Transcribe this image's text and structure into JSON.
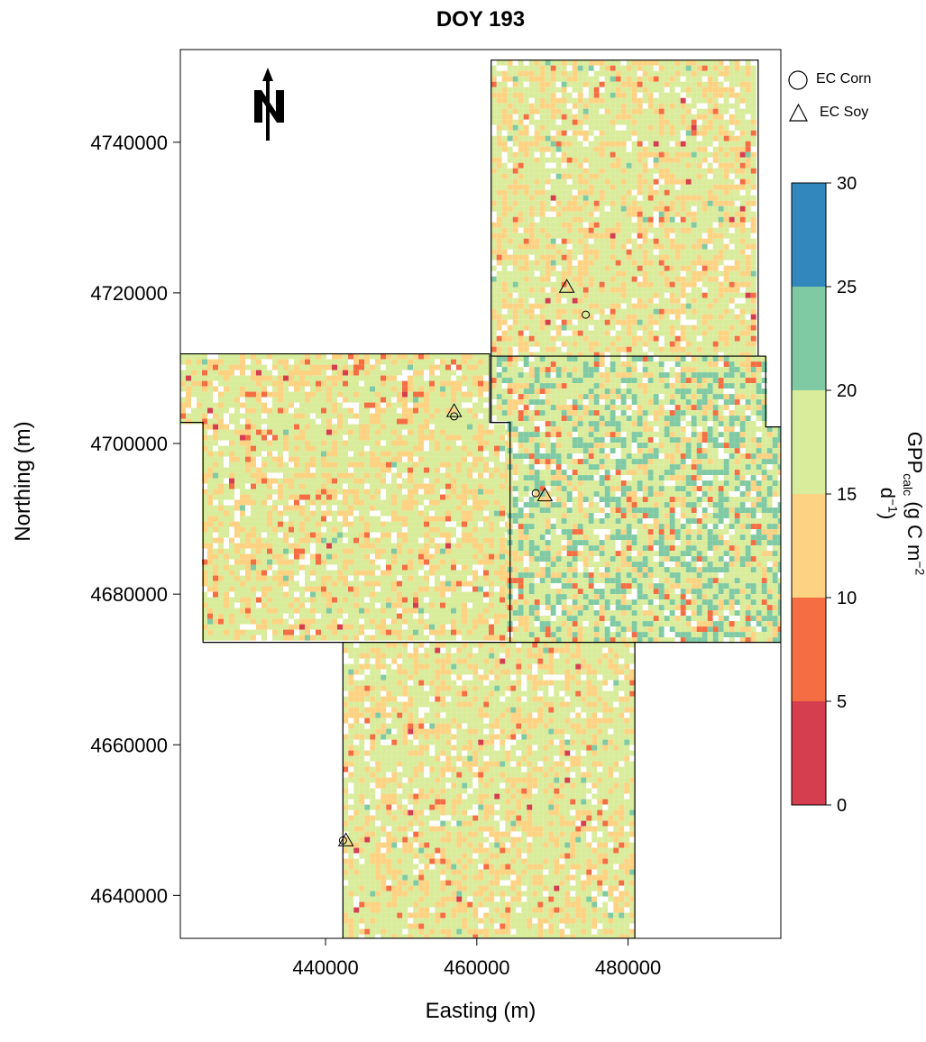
{
  "title": "DOY 193",
  "axes": {
    "xlabel": "Easting (m)",
    "ylabel": "Northing (m)",
    "xticks": [
      "440000",
      "460000",
      "480000"
    ],
    "xtick_values": [
      440000,
      460000,
      480000
    ],
    "yticks": [
      "4640000",
      "4660000",
      "4680000",
      "4700000",
      "4720000",
      "4740000"
    ],
    "ytick_values": [
      4640000,
      4660000,
      4680000,
      4700000,
      4720000,
      4740000
    ],
    "xlim": [
      420800,
      500200
    ],
    "ylim": [
      4634300,
      4752300
    ]
  },
  "north_arrow": {
    "label": "N",
    "icon": "north-arrow-icon"
  },
  "legend": {
    "items": [
      {
        "label": "EC Corn",
        "symbol": "circle"
      },
      {
        "label": "EC Soy",
        "symbol": "triangle"
      }
    ]
  },
  "colorbar": {
    "label_main": "GPP",
    "label_sub": "calc",
    "label_rest_a": " (g C m",
    "label_sup1": "−2",
    "label_rest_b": " d",
    "label_sup2": "−1",
    "label_close": ")",
    "ticks": [
      "0",
      "5",
      "10",
      "15",
      "20",
      "25",
      "30"
    ],
    "bins": [
      {
        "range": [
          0,
          5
        ],
        "color": "#d53e4f"
      },
      {
        "range": [
          5,
          10
        ],
        "color": "#f46d43"
      },
      {
        "range": [
          10,
          15
        ],
        "color": "#fdd283"
      },
      {
        "range": [
          15,
          20
        ],
        "color": "#d9ec9b"
      },
      {
        "range": [
          20,
          25
        ],
        "color": "#7fc9a3"
      },
      {
        "range": [
          25,
          30
        ],
        "color": "#3288bd"
      }
    ]
  },
  "sites": [
    {
      "type": "triangle",
      "easting": 471900,
      "northing": 4720800
    },
    {
      "type": "circle",
      "easting": 474400,
      "northing": 4717100
    },
    {
      "type": "triangle",
      "easting": 457000,
      "northing": 4704300
    },
    {
      "type": "circle",
      "easting": 457000,
      "northing": 4703600
    },
    {
      "type": "circle",
      "easting": 467800,
      "northing": 4693400
    },
    {
      "type": "triangle",
      "easting": 469000,
      "northing": 4693100
    },
    {
      "type": "triangle",
      "easting": 442700,
      "northing": 4647300
    },
    {
      "type": "circle",
      "easting": 442300,
      "northing": 4647300
    }
  ],
  "tiles": [
    {
      "name": "tile-northeast",
      "polygon": [
        [
          461900,
          4750900
        ],
        [
          497200,
          4750900
        ],
        [
          497200,
          4711600
        ],
        [
          461900,
          4711600
        ]
      ],
      "dominant": "#d9ec9b"
    },
    {
      "name": "tile-west",
      "polygon": [
        [
          420800,
          4711900
        ],
        [
          461700,
          4711900
        ],
        [
          461700,
          4702800
        ],
        [
          464400,
          4702800
        ],
        [
          464400,
          4673600
        ],
        [
          423800,
          4673600
        ],
        [
          423800,
          4702800
        ],
        [
          420800,
          4702800
        ]
      ],
      "dominant": "#d9ec9b"
    },
    {
      "name": "tile-east",
      "polygon": [
        [
          461900,
          4711600
        ],
        [
          498200,
          4711600
        ],
        [
          498200,
          4702200
        ],
        [
          500200,
          4702200
        ],
        [
          500200,
          4673600
        ],
        [
          464400,
          4673600
        ],
        [
          464400,
          4702800
        ],
        [
          461900,
          4702800
        ]
      ],
      "dominant": "#d9ec9b"
    },
    {
      "name": "tile-south",
      "polygon": [
        [
          442300,
          4673600
        ],
        [
          480900,
          4673600
        ],
        [
          480900,
          4634300
        ],
        [
          442300,
          4634300
        ]
      ],
      "dominant": "#d9ec9b"
    }
  ]
}
